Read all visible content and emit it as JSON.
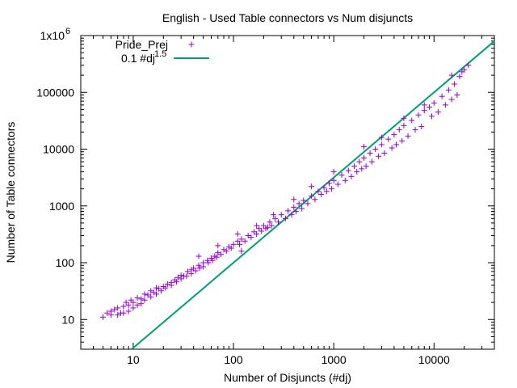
{
  "chart_data": {
    "type": "scatter",
    "title": "English - Used Table connectors vs Num disjuncts",
    "xlabel": "Number of Disjuncts (#dj)",
    "ylabel": "Number of Table connectors",
    "xscale": "log",
    "yscale": "log",
    "xlim": [
      3,
      40000
    ],
    "ylim": [
      3,
      1000000
    ],
    "xticks": [
      {
        "value": 10,
        "label": "10"
      },
      {
        "value": 100,
        "label": "100"
      },
      {
        "value": 1000,
        "label": "1000"
      },
      {
        "value": 10000,
        "label": "10000"
      }
    ],
    "yticks": [
      {
        "value": 10,
        "label": "10"
      },
      {
        "value": 100,
        "label": "100"
      },
      {
        "value": 1000,
        "label": "1000"
      },
      {
        "value": 10000,
        "label": "10000"
      },
      {
        "value": 100000,
        "label": "100000"
      },
      {
        "value": 1000000,
        "label": "1x10",
        "sup": "6"
      }
    ],
    "legend_position": "top-left",
    "series": [
      {
        "name": "Pride_Prej",
        "marker": "+",
        "color": "#9400d3",
        "points": [
          [
            5,
            11
          ],
          [
            5.5,
            13
          ],
          [
            6,
            14
          ],
          [
            6.5,
            15
          ],
          [
            7,
            16
          ],
          [
            7.5,
            13
          ],
          [
            8,
            17
          ],
          [
            8.5,
            20
          ],
          [
            9,
            18
          ],
          [
            9.5,
            22
          ],
          [
            10,
            20
          ],
          [
            11,
            24
          ],
          [
            12,
            23
          ],
          [
            13,
            28
          ],
          [
            14,
            27
          ],
          [
            15,
            32
          ],
          [
            16,
            30
          ],
          [
            17,
            36
          ],
          [
            18,
            35
          ],
          [
            20,
            38
          ],
          [
            22,
            42
          ],
          [
            24,
            45
          ],
          [
            26,
            50
          ],
          [
            28,
            55
          ],
          [
            30,
            60
          ],
          [
            32,
            58
          ],
          [
            35,
            70
          ],
          [
            38,
            75
          ],
          [
            40,
            80
          ],
          [
            45,
            90
          ],
          [
            50,
            100
          ],
          [
            55,
            110
          ],
          [
            60,
            120
          ],
          [
            65,
            130
          ],
          [
            70,
            150
          ],
          [
            80,
            170
          ],
          [
            90,
            190
          ],
          [
            100,
            210
          ],
          [
            110,
            240
          ],
          [
            120,
            260
          ],
          [
            140,
            300
          ],
          [
            160,
            350
          ],
          [
            180,
            400
          ],
          [
            200,
            450
          ],
          [
            230,
            520
          ],
          [
            260,
            600
          ],
          [
            300,
            700
          ],
          [
            350,
            820
          ],
          [
            400,
            950
          ],
          [
            450,
            1100
          ],
          [
            500,
            1250
          ],
          [
            600,
            1500
          ],
          [
            700,
            1800
          ],
          [
            800,
            2100
          ],
          [
            900,
            2500
          ],
          [
            1000,
            2800
          ],
          [
            1200,
            3500
          ],
          [
            1400,
            4200
          ],
          [
            1600,
            5000
          ],
          [
            1800,
            6000
          ],
          [
            2000,
            7000
          ],
          [
            2300,
            8500
          ],
          [
            2600,
            10000
          ],
          [
            3000,
            12000
          ],
          [
            3500,
            15000
          ],
          [
            4000,
            18000
          ],
          [
            4500,
            22000
          ],
          [
            5000,
            26000
          ],
          [
            6000,
            32000
          ],
          [
            7000,
            40000
          ],
          [
            8000,
            48000
          ],
          [
            9000,
            55000
          ],
          [
            10000,
            65000
          ],
          [
            12000,
            85000
          ],
          [
            14000,
            110000
          ],
          [
            16000,
            140000
          ],
          [
            18000,
            190000
          ],
          [
            20000,
            250000
          ],
          [
            22000,
            300000
          ],
          [
            17000,
            90000
          ],
          [
            15000,
            75000
          ],
          [
            13000,
            60000
          ],
          [
            11000,
            45000
          ],
          [
            9500,
            38000
          ],
          [
            7500,
            25000
          ],
          [
            6500,
            22000
          ],
          [
            5500,
            17000
          ],
          [
            4800,
            14000
          ],
          [
            4200,
            12000
          ],
          [
            3800,
            10500
          ],
          [
            3200,
            8500
          ],
          [
            2800,
            7500
          ],
          [
            2400,
            6000
          ],
          [
            2100,
            5000
          ],
          [
            1900,
            4500
          ],
          [
            1700,
            4000
          ],
          [
            1500,
            3300
          ],
          [
            1300,
            2800
          ],
          [
            1100,
            2400
          ],
          [
            950,
            2000
          ],
          [
            850,
            1800
          ],
          [
            750,
            1600
          ],
          [
            650,
            1300
          ],
          [
            550,
            1100
          ],
          [
            480,
            900
          ],
          [
            420,
            800
          ],
          [
            380,
            700
          ],
          [
            330,
            600
          ],
          [
            280,
            520
          ],
          [
            240,
            450
          ],
          [
            210,
            400
          ],
          [
            190,
            360
          ],
          [
            170,
            320
          ],
          [
            150,
            280
          ],
          [
            130,
            240
          ],
          [
            115,
            210
          ],
          [
            95,
            180
          ],
          [
            85,
            160
          ],
          [
            75,
            140
          ],
          [
            68,
            125
          ],
          [
            62,
            110
          ],
          [
            56,
            100
          ],
          [
            50,
            85
          ],
          [
            46,
            80
          ],
          [
            42,
            72
          ],
          [
            38,
            64
          ],
          [
            34,
            58
          ],
          [
            30,
            52
          ],
          [
            27,
            46
          ],
          [
            24,
            40
          ],
          [
            21,
            36
          ],
          [
            19,
            32
          ],
          [
            17,
            28
          ],
          [
            15,
            25
          ],
          [
            13,
            22
          ],
          [
            12,
            19
          ],
          [
            11,
            18
          ],
          [
            10,
            16
          ],
          [
            9,
            14
          ],
          [
            8,
            13
          ],
          [
            7,
            12
          ],
          [
            6,
            12
          ],
          [
            120,
            160
          ],
          [
            220,
            420
          ],
          [
            1000,
            4000
          ],
          [
            2000,
            11000
          ],
          [
            3000,
            16000
          ],
          [
            5000,
            35000
          ],
          [
            8000,
            60000
          ],
          [
            15000,
            200000
          ],
          [
            19000,
            230000
          ],
          [
            600,
            2200
          ],
          [
            400,
            1300
          ],
          [
            250,
            700
          ],
          [
            170,
            450
          ],
          [
            110,
            320
          ],
          [
            70,
            200
          ],
          [
            45,
            130
          ]
        ]
      },
      {
        "name": "0.1 #dj",
        "name_sup": "1.5",
        "marker": "line",
        "color": "#009e73",
        "exponent": 1.5,
        "coefficient": 0.1
      }
    ]
  }
}
